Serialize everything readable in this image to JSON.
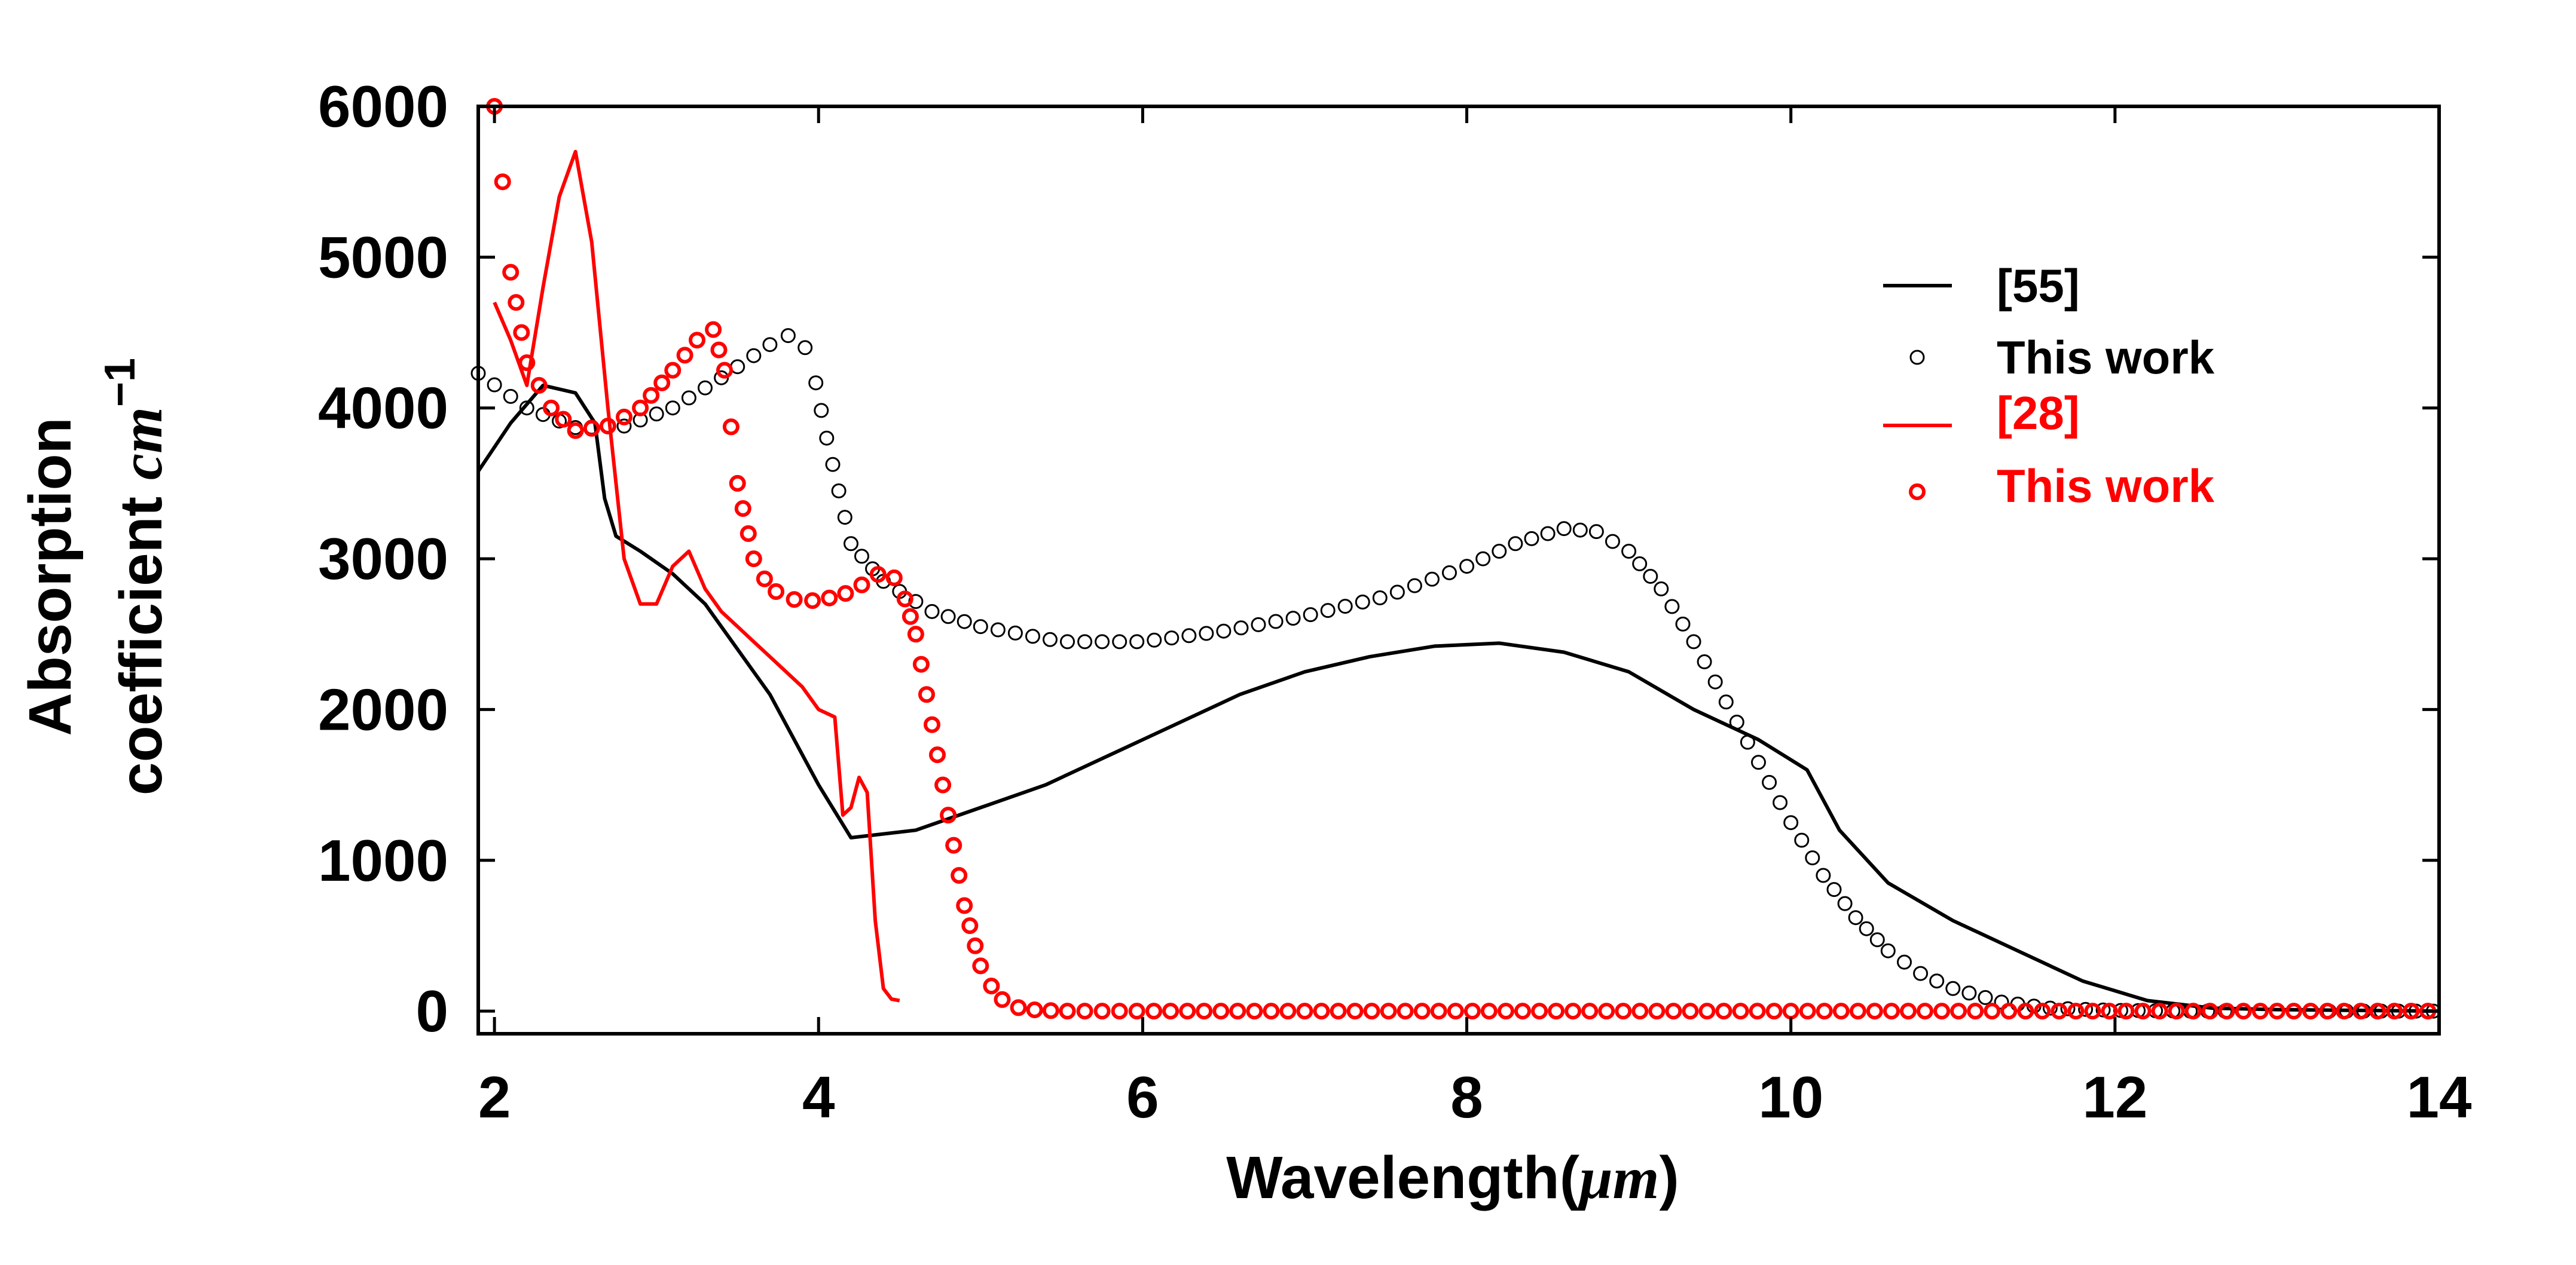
{
  "chart_data": {
    "type": "line",
    "title": "",
    "xlabel": "Wavelength(",
    "xlabel_math": "μm",
    "xlabel_suffix": ")",
    "ylabel_line1": "Absorption",
    "ylabel_line2": "coefficient ",
    "ylabel_math": "cm",
    "ylabel_sup": "−1",
    "xlim": [
      1.9,
      14
    ],
    "ylim": [
      -150,
      6000
    ],
    "xticks": [
      2,
      4,
      6,
      8,
      10,
      12,
      14
    ],
    "xtick_labels": [
      "2",
      "4",
      "6",
      "8",
      "10",
      "12",
      "14"
    ],
    "yticks": [
      0,
      1000,
      2000,
      3000,
      4000,
      5000,
      6000
    ],
    "ytick_labels": [
      "0",
      "1000",
      "2000",
      "3000",
      "4000",
      "5000",
      "6000"
    ],
    "grid": false,
    "legend_position": "top-right",
    "series": [
      {
        "name": "[55]",
        "style": "line",
        "color": "#000000",
        "x": [
          1.9,
          2.1,
          2.3,
          2.5,
          2.62,
          2.68,
          2.75,
          2.9,
          3.1,
          3.3,
          3.5,
          3.7,
          3.9,
          4.0,
          4.2,
          4.6,
          5.0,
          5.4,
          5.8,
          6.2,
          6.6,
          7.0,
          7.4,
          7.8,
          8.2,
          8.6,
          9.0,
          9.4,
          9.8,
          10.1,
          10.3,
          10.6,
          11.0,
          11.4,
          11.8,
          12.2,
          12.6,
          13.0,
          13.5,
          14.0
        ],
        "y": [
          3580,
          3900,
          4150,
          4100,
          3900,
          3400,
          3150,
          3050,
          2900,
          2700,
          2400,
          2100,
          1700,
          1500,
          1150,
          1200,
          1350,
          1500,
          1700,
          1900,
          2100,
          2250,
          2350,
          2420,
          2440,
          2380,
          2250,
          2000,
          1800,
          1600,
          1200,
          850,
          600,
          400,
          200,
          70,
          20,
          10,
          5,
          0
        ]
      },
      {
        "name": "This work",
        "style": "markers",
        "color": "#000000",
        "x": [
          1.9,
          2.2,
          2.5,
          2.8,
          3.1,
          3.4,
          3.7,
          3.85,
          3.95,
          4.05,
          4.2,
          4.4,
          4.7,
          5.0,
          5.5,
          6.0,
          6.5,
          7.0,
          7.5,
          8.0,
          8.3,
          8.6,
          8.8,
          9.0,
          9.2,
          9.4,
          9.6,
          9.8,
          10.0,
          10.2,
          10.4,
          10.6,
          10.8,
          11.0,
          11.3,
          11.6,
          12.0,
          12.5,
          13.0,
          13.5,
          14.0
        ],
        "y": [
          4230,
          4000,
          3870,
          3880,
          4000,
          4200,
          4420,
          4500,
          4350,
          3800,
          3100,
          2850,
          2650,
          2550,
          2450,
          2450,
          2520,
          2620,
          2750,
          2950,
          3100,
          3200,
          3180,
          3050,
          2800,
          2450,
          2050,
          1650,
          1250,
          900,
          620,
          400,
          250,
          150,
          60,
          20,
          5,
          0,
          0,
          0,
          0
        ]
      },
      {
        "name": "[28]",
        "style": "line",
        "color": "#ff0000",
        "x": [
          2.0,
          2.1,
          2.2,
          2.3,
          2.4,
          2.5,
          2.6,
          2.7,
          2.8,
          2.9,
          3.0,
          3.1,
          3.2,
          3.3,
          3.4,
          3.5,
          3.6,
          3.7,
          3.8,
          3.9,
          4.0,
          4.1,
          4.15,
          4.2,
          4.25,
          4.3,
          4.35,
          4.4,
          4.45,
          4.5
        ],
        "y": [
          4700,
          4450,
          4150,
          4800,
          5400,
          5700,
          5100,
          4000,
          3000,
          2700,
          2700,
          2950,
          3050,
          2800,
          2650,
          2550,
          2450,
          2350,
          2250,
          2150,
          2000,
          1950,
          1300,
          1350,
          1550,
          1450,
          600,
          150,
          80,
          70
        ]
      },
      {
        "name": "This work",
        "style": "markers",
        "color": "#ff0000",
        "x": [
          2.0,
          2.05,
          2.1,
          2.2,
          2.35,
          2.5,
          2.7,
          2.9,
          3.1,
          3.25,
          3.35,
          3.42,
          3.5,
          3.6,
          3.7,
          3.85,
          4.0,
          4.2,
          4.4,
          4.5,
          4.6,
          4.7,
          4.8,
          4.9,
          5.0,
          5.1,
          5.2,
          5.3,
          5.5,
          6.0,
          7.0,
          8.0,
          9.0,
          10.0,
          11.0,
          12.0,
          13.0,
          14.0
        ],
        "y": [
          6000,
          5500,
          4900,
          4300,
          4000,
          3850,
          3880,
          4000,
          4250,
          4450,
          4520,
          4250,
          3500,
          3000,
          2800,
          2730,
          2720,
          2780,
          2920,
          2850,
          2500,
          1900,
          1300,
          700,
          300,
          100,
          30,
          10,
          0,
          0,
          0,
          0,
          0,
          0,
          0,
          0,
          0,
          0
        ]
      }
    ]
  }
}
